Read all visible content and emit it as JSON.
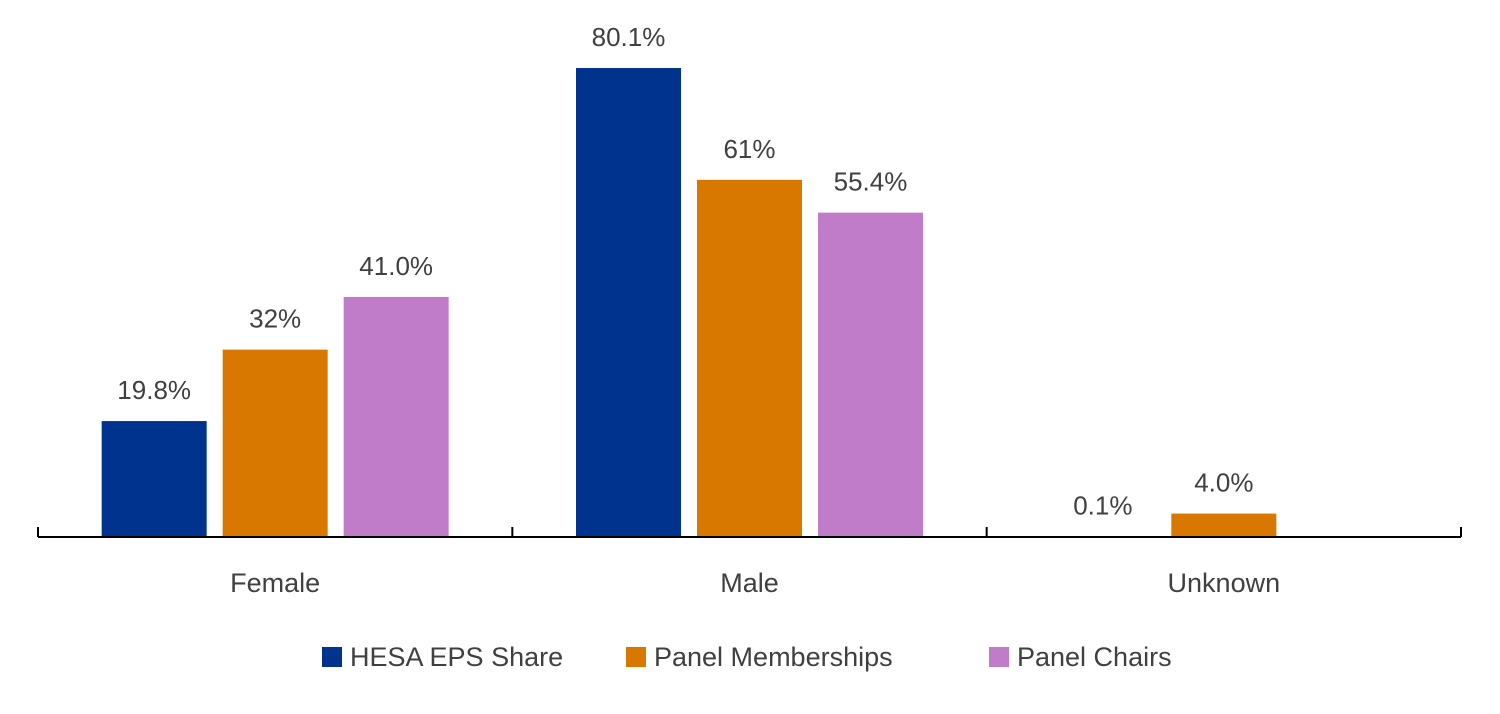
{
  "chart_data": {
    "type": "bar",
    "title": "",
    "xlabel": "",
    "ylabel": "",
    "ylim": [
      0,
      90
    ],
    "grid": false,
    "legend_position": "bottom",
    "categories": [
      "Female",
      "Male",
      "Unknown"
    ],
    "series": [
      {
        "name": "HESA EPS Share",
        "color": "#00338D",
        "values": [
          19.8,
          80.1,
          0.1
        ],
        "labels": [
          "19.8%",
          "80.1%",
          "0.1%"
        ]
      },
      {
        "name": "Panel Memberships",
        "color": "#D97800",
        "values": [
          32,
          61,
          4.0
        ],
        "labels": [
          "32%",
          "61%",
          "4.0%"
        ]
      },
      {
        "name": "Panel Chairs",
        "color": "#C07CC8",
        "values": [
          41.0,
          55.4,
          null
        ],
        "labels": [
          "41.0%",
          "55.4%",
          null
        ]
      }
    ]
  }
}
